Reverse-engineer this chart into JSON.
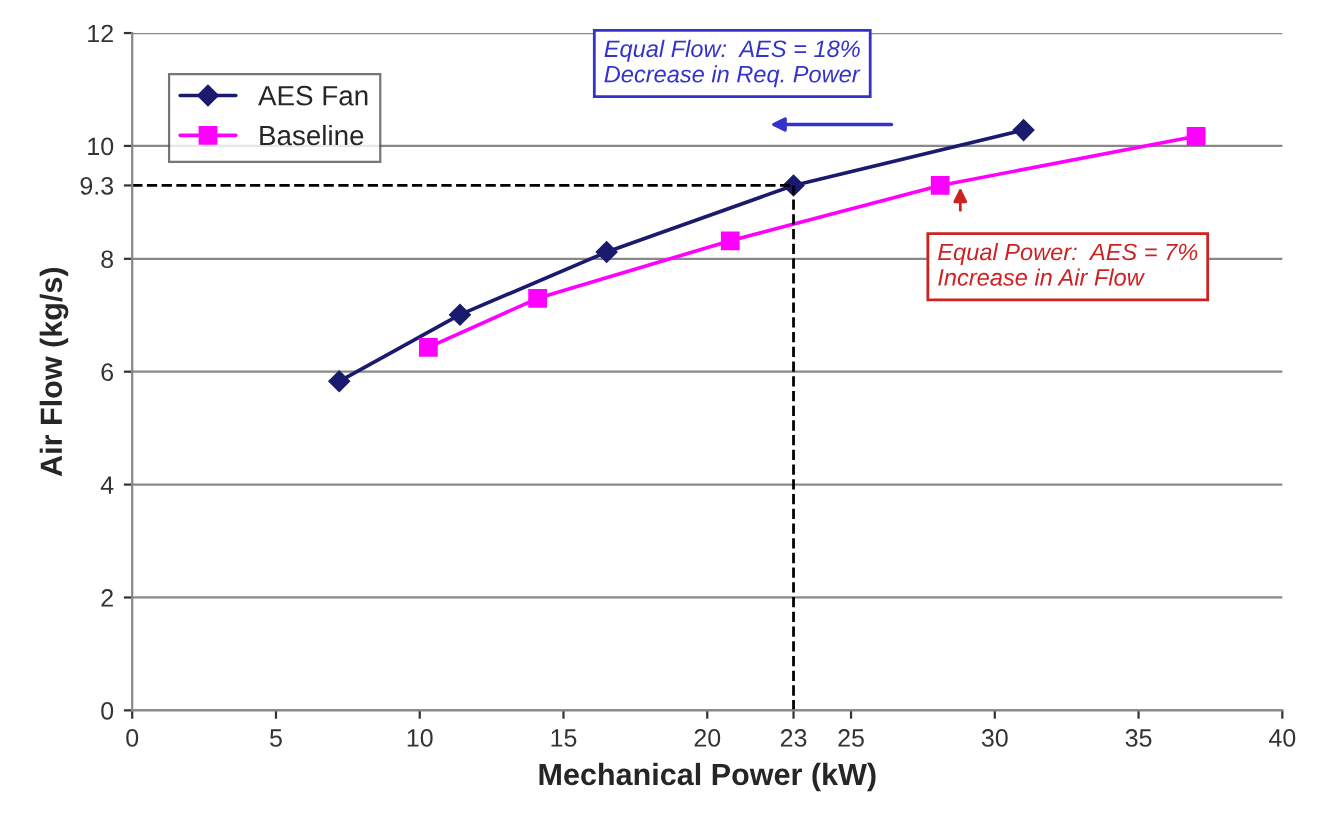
{
  "chart_data": {
    "type": "line",
    "xlabel": "Mechanical Power (kW)",
    "ylabel": "Air Flow (kg/s)",
    "xlim": [
      0,
      40
    ],
    "xticks": [
      0,
      5,
      10,
      15,
      20,
      23,
      25,
      30,
      35,
      40
    ],
    "ylim": [
      0,
      12
    ],
    "yticks": [
      0,
      2,
      4,
      6,
      8,
      {
        "value": 9.3,
        "label": "9.3"
      },
      10,
      12
    ],
    "grid": "y",
    "legend": "top left",
    "series": [
      {
        "name": "AES Fan",
        "color": "#1a1a6e",
        "marker": "diamond",
        "x": [
          7.2,
          11.4,
          16.5,
          23,
          31
        ],
        "values": [
          5.83,
          7.01,
          8.12,
          9.3,
          10.28
        ]
      },
      {
        "name": "Baseline",
        "color": "#ff00ff",
        "marker": "square",
        "x": [
          10.3,
          14.1,
          20.8,
          28.1,
          37.0
        ],
        "values": [
          6.43,
          7.3,
          8.32,
          9.3,
          10.17
        ]
      }
    ],
    "ref_lines": [
      {
        "axis": "x",
        "value": 23,
        "color": "#000000",
        "line_style": "dashed"
      },
      {
        "axis": "y",
        "value": 9.3,
        "color": "#000000",
        "line_style": "dashed"
      }
    ],
    "annotations": [
      "Equal Flow:  AES = 18%\nDecrease in Req. Power",
      "Equal Power:  AES = 7%\nIncrease in Air Flow"
    ]
  }
}
